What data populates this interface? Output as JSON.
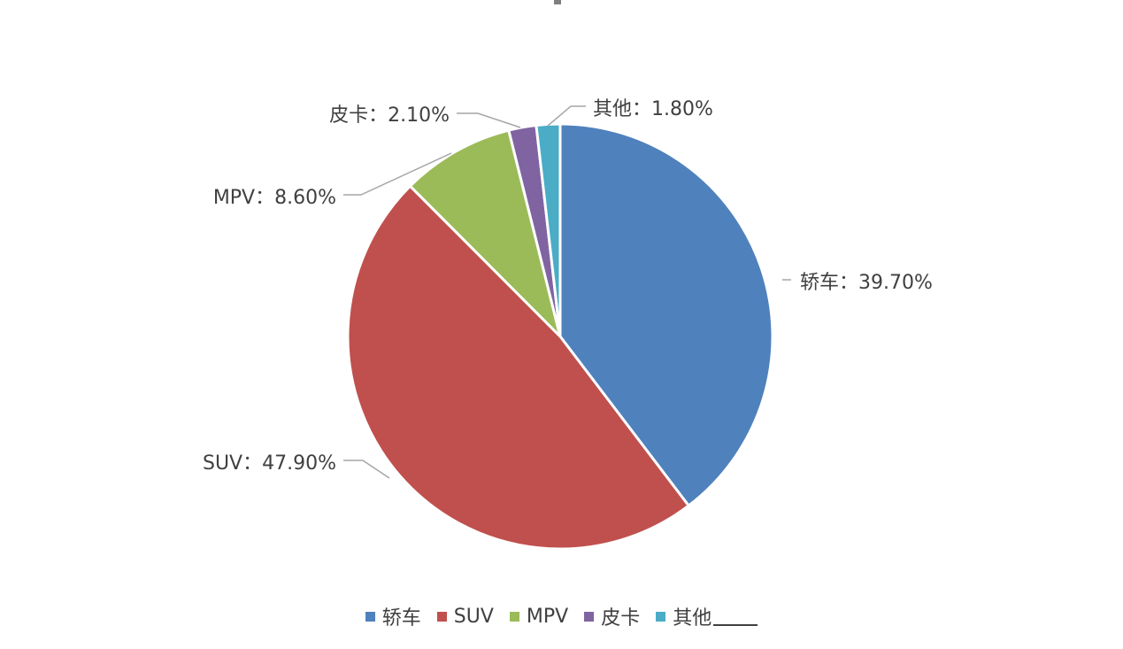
{
  "chart_data": {
    "type": "pie",
    "categories": [
      "轿车",
      "SUV",
      "MPV",
      "皮卡",
      "其他"
    ],
    "values": [
      39.7,
      47.9,
      8.6,
      2.1,
      1.8
    ],
    "unit": "%",
    "labels": [
      "轿车：39.70%",
      "SUV：47.90%",
      "MPV：8.60%",
      "皮卡：2.10%",
      "其他：1.80%"
    ],
    "colors": [
      "#4f81bd",
      "#c0504d",
      "#9bbb59",
      "#8064a2",
      "#4bacc6"
    ],
    "start_angle_deg": 0,
    "direction": "clockwise",
    "legend": {
      "position": "bottom",
      "items": [
        "轿车",
        "SUV",
        "MPV",
        "皮卡",
        "其他"
      ]
    },
    "title": ""
  }
}
